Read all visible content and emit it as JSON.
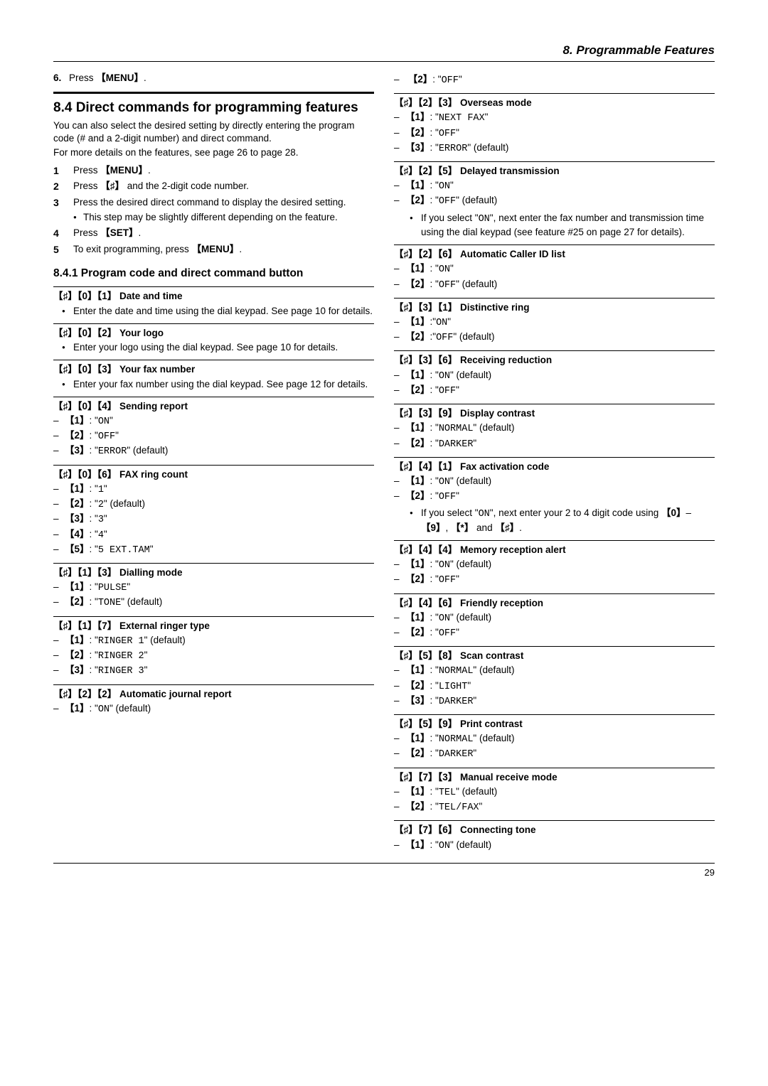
{
  "header": {
    "chapter": "8. Programmable Features"
  },
  "pageNumber": "29",
  "left": {
    "step6": {
      "num": "6.",
      "text_a": "Press ",
      "key": "【MENU】",
      "text_b": "."
    },
    "secTitle": "8.4 Direct commands for programming features",
    "intro1": "You can also select the desired setting by directly entering the program code (# and a 2-digit number) and direct command.",
    "intro2": "For more details on the features, see page 26 to page 28.",
    "steps": [
      {
        "n": "1",
        "t": "Press 【MENU】."
      },
      {
        "n": "2",
        "t": "Press 【♯】 and the 2-digit code number."
      },
      {
        "n": "3",
        "t": "Press the desired direct command to display the desired setting.",
        "sub": "This step may be slightly different depending on the feature."
      },
      {
        "n": "4",
        "t": "Press 【SET】."
      },
      {
        "n": "5",
        "t": "To exit programming, press 【MENU】."
      }
    ],
    "subTitle": "8.4.1 Program code and direct command button",
    "features": [
      {
        "code": "【♯】【0】【1】",
        "title": "Date and time",
        "bullets": [
          "Enter the date and time using the dial keypad. See page 10 for details."
        ]
      },
      {
        "code": "【♯】【0】【2】",
        "title": "Your logo",
        "bullets": [
          "Enter your logo using the dial keypad. See page 10 for details."
        ]
      },
      {
        "code": "【♯】【0】【3】",
        "title": "Your fax number",
        "bullets": [
          "Enter your fax number using the dial keypad. See page 12 for details."
        ]
      },
      {
        "code": "【♯】【0】【4】",
        "title": "Sending report",
        "opts": [
          {
            "k": "【1】",
            "v": "ON"
          },
          {
            "k": "【2】",
            "v": "OFF"
          },
          {
            "k": "【3】",
            "v": "ERROR",
            "d": " (default)"
          }
        ]
      },
      {
        "code": "【♯】【0】【6】",
        "title": "FAX ring count",
        "opts": [
          {
            "k": "【1】",
            "v": "1"
          },
          {
            "k": "【2】",
            "v": "2",
            "d": " (default)"
          },
          {
            "k": "【3】",
            "v": "3"
          },
          {
            "k": "【4】",
            "v": "4"
          },
          {
            "k": "【5】",
            "v": "5 EXT.TAM"
          }
        ]
      },
      {
        "code": "【♯】【1】【3】",
        "title": "Dialling mode",
        "opts": [
          {
            "k": "【1】",
            "v": "PULSE"
          },
          {
            "k": "【2】",
            "v": "TONE",
            "d": " (default)"
          }
        ]
      },
      {
        "code": "【♯】【1】【7】",
        "title": "External ringer type",
        "opts": [
          {
            "k": "【1】",
            "v": "RINGER 1",
            "d": " (default)"
          },
          {
            "k": "【2】",
            "v": "RINGER 2"
          },
          {
            "k": "【3】",
            "v": "RINGER 3"
          }
        ]
      },
      {
        "code": "【♯】【2】【2】",
        "title": "Automatic journal report",
        "opts": [
          {
            "k": "【1】",
            "v": "ON",
            "d": " (default)"
          }
        ]
      }
    ]
  },
  "right": {
    "cont": {
      "k": "【2】",
      "v": "OFF"
    },
    "features": [
      {
        "code": "【♯】【2】【3】",
        "title": "Overseas mode",
        "opts": [
          {
            "k": "【1】",
            "v": "NEXT FAX"
          },
          {
            "k": "【2】",
            "v": "OFF"
          },
          {
            "k": "【3】",
            "v": "ERROR",
            "d": " (default)"
          }
        ]
      },
      {
        "code": "【♯】【2】【5】",
        "title": "Delayed transmission",
        "opts": [
          {
            "k": "【1】",
            "v": "ON"
          },
          {
            "k": "【2】",
            "v": "OFF",
            "d": " (default)"
          }
        ],
        "note": "If you select \"ON\", next enter the fax number and transmission time using the dial keypad (see feature #25 on page 27 for details)."
      },
      {
        "code": "【♯】【2】【6】",
        "title": "Automatic Caller ID list",
        "opts": [
          {
            "k": "【1】",
            "v": "ON"
          },
          {
            "k": "【2】",
            "v": "OFF",
            "d": " (default)"
          }
        ]
      },
      {
        "code": "【♯】【3】【1】",
        "title": "Distinctive ring",
        "opts": [
          {
            "k": "【1】",
            "sep": ":",
            "v": "ON"
          },
          {
            "k": "【2】",
            "sep": ":",
            "v": "OFF",
            "d": " (default)"
          }
        ]
      },
      {
        "code": "【♯】【3】【6】",
        "title": "Receiving reduction",
        "opts": [
          {
            "k": "【1】",
            "v": "ON",
            "d": " (default)"
          },
          {
            "k": "【2】",
            "v": "OFF"
          }
        ]
      },
      {
        "code": "【♯】【3】【9】",
        "title": "Display contrast",
        "opts": [
          {
            "k": "【1】",
            "v": "NORMAL",
            "d": " (default)"
          },
          {
            "k": "【2】",
            "v": "DARKER"
          }
        ]
      },
      {
        "code": "【♯】【4】【1】",
        "title": "Fax activation code",
        "opts": [
          {
            "k": "【1】",
            "v": "ON",
            "d": " (default)"
          },
          {
            "k": "【2】",
            "v": "OFF"
          }
        ],
        "note": "If you select \"ON\", next enter your 2 to 4 digit code using 【0】–【9】, 【*】 and 【♯】."
      },
      {
        "code": "【♯】【4】【4】",
        "title": "Memory reception alert",
        "opts": [
          {
            "k": "【1】",
            "v": "ON",
            "d": " (default)"
          },
          {
            "k": "【2】",
            "v": "OFF"
          }
        ]
      },
      {
        "code": "【♯】【4】【6】",
        "title": "Friendly reception",
        "opts": [
          {
            "k": "【1】",
            "v": "ON",
            "d": " (default)"
          },
          {
            "k": "【2】",
            "v": "OFF"
          }
        ]
      },
      {
        "code": "【♯】【5】【8】",
        "title": "Scan contrast",
        "opts": [
          {
            "k": "【1】",
            "v": "NORMAL",
            "d": " (default)"
          },
          {
            "k": "【2】",
            "v": "LIGHT"
          },
          {
            "k": "【3】",
            "v": "DARKER"
          }
        ]
      },
      {
        "code": "【♯】【5】【9】",
        "title": "Print contrast",
        "opts": [
          {
            "k": "【1】",
            "v": "NORMAL",
            "d": " (default)"
          },
          {
            "k": "【2】",
            "v": "DARKER"
          }
        ]
      },
      {
        "code": "【♯】【7】【3】",
        "title": "Manual receive mode",
        "opts": [
          {
            "k": "【1】",
            "v": "TEL",
            "d": " (default)"
          },
          {
            "k": "【2】",
            "v": "TEL/FAX"
          }
        ]
      },
      {
        "code": "【♯】【7】【6】",
        "title": "Connecting tone",
        "opts": [
          {
            "k": "【1】",
            "v": "ON",
            "d": " (default)"
          }
        ]
      }
    ]
  }
}
